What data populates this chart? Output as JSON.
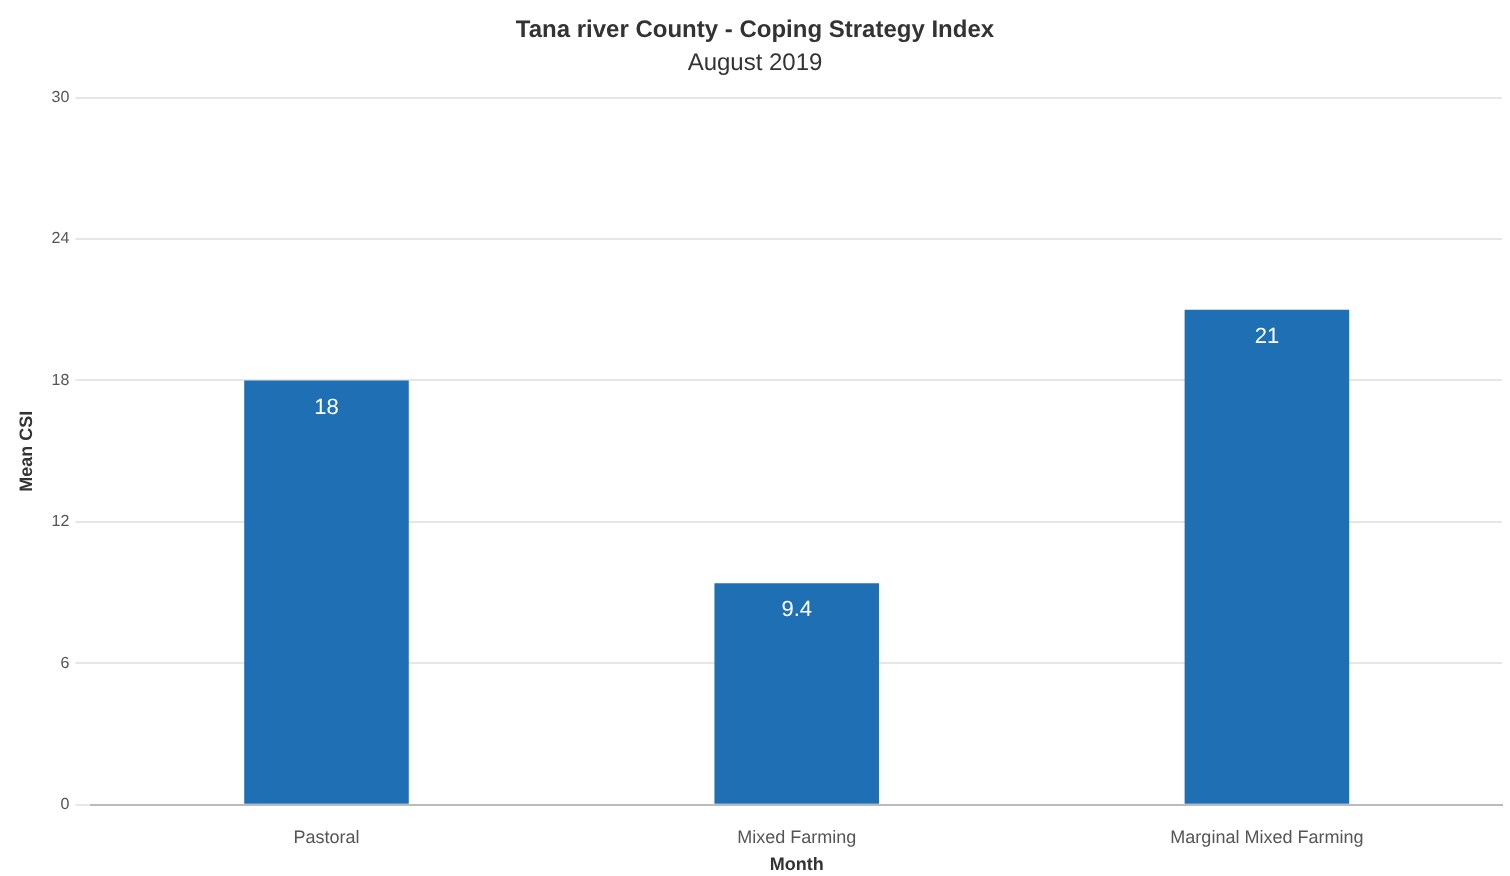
{
  "chart_data": {
    "type": "bar",
    "title": "Tana river County - Coping Strategy Index",
    "subtitle": "August 2019",
    "xlabel": "Month",
    "ylabel": "Mean CSI",
    "categories": [
      "Pastoral",
      "Mixed Farming",
      "Marginal Mixed Farming"
    ],
    "values": [
      18,
      9.4,
      21
    ],
    "color": "#1f6fb5",
    "ylim": [
      0,
      30
    ],
    "yticks": [
      0,
      6,
      12,
      18,
      24,
      30
    ],
    "grid": "y",
    "data_labels": true,
    "legend": false
  }
}
